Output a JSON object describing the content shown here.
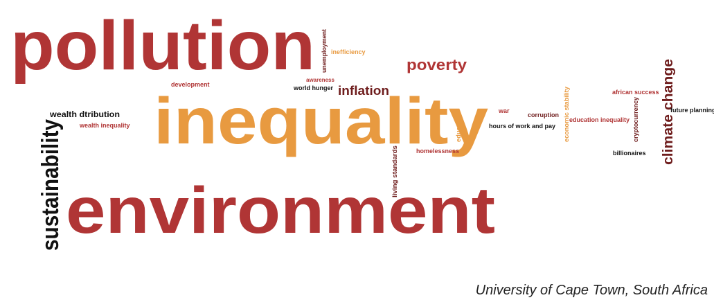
{
  "words": [
    "pollution",
    "unemployment",
    "inefficiency",
    "poverty",
    "awareness",
    "world hunger",
    "inflation",
    "development",
    "inequality",
    "wealth dtribution",
    "wealth inequality",
    "sustainability",
    "environment",
    "living standards",
    "education",
    "homelessness",
    "war",
    "corruption",
    "hours of work and pay",
    "economic stability",
    "education inequality",
    "african success",
    "cryptocurrency",
    "climate change",
    "future planning",
    "billionaires"
  ],
  "caption": "University of Cape Town, South Africa"
}
